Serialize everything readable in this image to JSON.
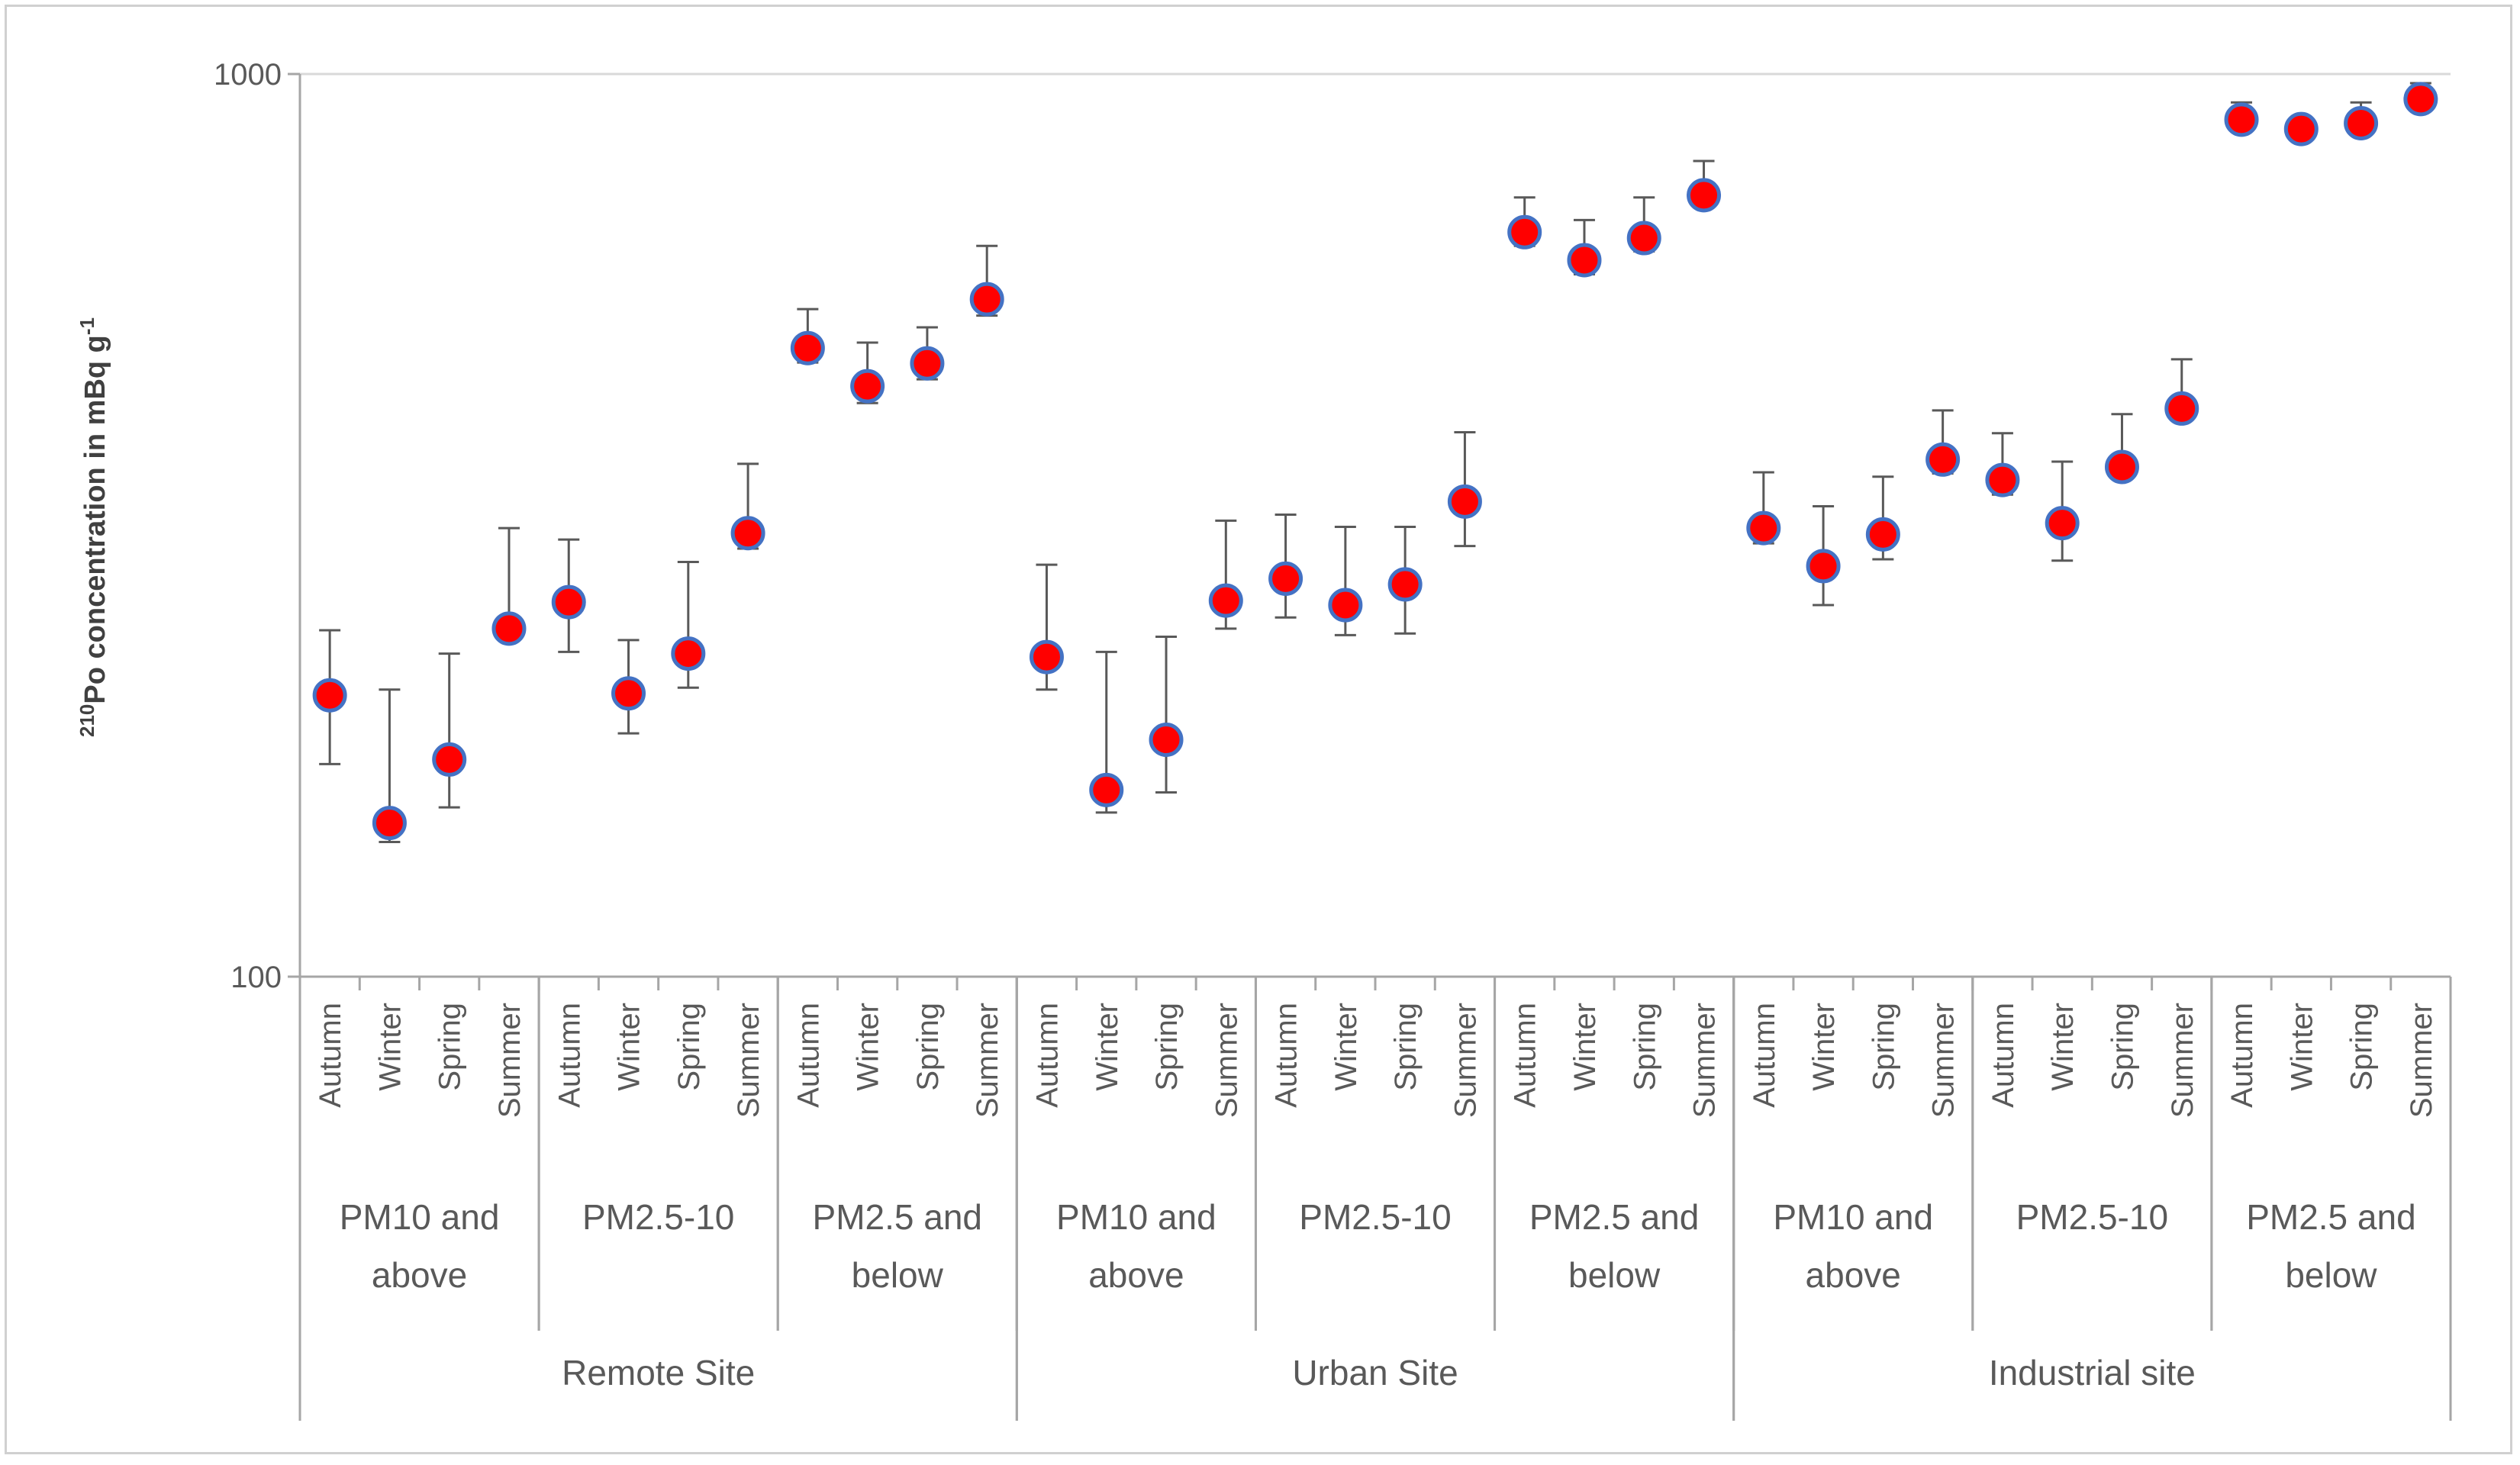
{
  "chart_data": {
    "type": "scatter",
    "title": "",
    "ylabel": {
      "superscript": "210",
      "text": "Po concentration in mBq g",
      "exponent": "-1"
    },
    "yscale": "log",
    "ylim": [
      100,
      1000
    ],
    "yticks": [
      {
        "value": 100,
        "label": "100"
      },
      {
        "value": 1000,
        "label": "1000"
      }
    ],
    "marker_fill": "#ff0000",
    "marker_edge": "#4472c4",
    "errorbar_color": "#595959",
    "sites": [
      {
        "label": "Remote Site",
        "groups": [
          {
            "label_lines": [
              "PM10 and",
              "above"
            ],
            "points": [
              {
                "season": "Autumn",
                "value": 205,
                "low": 172,
                "high": 242
              },
              {
                "season": "Winter",
                "value": 148,
                "low": 141,
                "high": 208
              },
              {
                "season": "Spring",
                "value": 174,
                "low": 154,
                "high": 228
              },
              {
                "season": "Summer",
                "value": 243,
                "low": 237,
                "high": 314
              }
            ]
          },
          {
            "label_lines": [
              "PM2.5-10"
            ],
            "points": [
              {
                "season": "Autumn",
                "value": 260,
                "low": 229,
                "high": 305
              },
              {
                "season": "Winter",
                "value": 206,
                "low": 186,
                "high": 236
              },
              {
                "season": "Spring",
                "value": 228,
                "low": 209,
                "high": 288
              },
              {
                "season": "Summer",
                "value": 310,
                "low": 298,
                "high": 370
              }
            ]
          },
          {
            "label_lines": [
              "PM2.5 and",
              "below"
            ],
            "points": [
              {
                "season": "Autumn",
                "value": 497,
                "low": 479,
                "high": 549
              },
              {
                "season": "Winter",
                "value": 451,
                "low": 432,
                "high": 504
              },
              {
                "season": "Spring",
                "value": 478,
                "low": 459,
                "high": 524
              },
              {
                "season": "Summer",
                "value": 563,
                "low": 540,
                "high": 645
              }
            ]
          }
        ]
      },
      {
        "label": "Urban Site",
        "groups": [
          {
            "label_lines": [
              "PM10 and",
              "above"
            ],
            "points": [
              {
                "season": "Autumn",
                "value": 226,
                "low": 208,
                "high": 286
              },
              {
                "season": "Winter",
                "value": 161,
                "low": 152,
                "high": 229
              },
              {
                "season": "Spring",
                "value": 183,
                "low": 160,
                "high": 238
              },
              {
                "season": "Summer",
                "value": 261,
                "low": 243,
                "high": 320
              }
            ]
          },
          {
            "label_lines": [
              "PM2.5-10"
            ],
            "points": [
              {
                "season": "Autumn",
                "value": 276,
                "low": 250,
                "high": 325
              },
              {
                "season": "Winter",
                "value": 258,
                "low": 239,
                "high": 315
              },
              {
                "season": "Spring",
                "value": 272,
                "low": 240,
                "high": 315
              },
              {
                "season": "Summer",
                "value": 336,
                "low": 300,
                "high": 401
              }
            ]
          },
          {
            "label_lines": [
              "PM2.5 and",
              "below"
            ],
            "points": [
              {
                "season": "Autumn",
                "value": 668,
                "low": 645,
                "high": 730
              },
              {
                "season": "Winter",
                "value": 622,
                "low": 600,
                "high": 689
              },
              {
                "season": "Spring",
                "value": 658,
                "low": 636,
                "high": 730
              },
              {
                "season": "Summer",
                "value": 734,
                "low": 720,
                "high": 801
              }
            ]
          }
        ]
      },
      {
        "label": "Industrial site",
        "groups": [
          {
            "label_lines": [
              "PM10 and",
              "above"
            ],
            "points": [
              {
                "season": "Autumn",
                "value": 314,
                "low": 302,
                "high": 362
              },
              {
                "season": "Winter",
                "value": 285,
                "low": 258,
                "high": 332
              },
              {
                "season": "Spring",
                "value": 309,
                "low": 290,
                "high": 358
              },
              {
                "season": "Summer",
                "value": 374,
                "low": 361,
                "high": 424
              }
            ]
          },
          {
            "label_lines": [
              "PM2.5-10"
            ],
            "points": [
              {
                "season": "Autumn",
                "value": 355,
                "low": 342,
                "high": 400
              },
              {
                "season": "Winter",
                "value": 318,
                "low": 289,
                "high": 372
              },
              {
                "season": "Spring",
                "value": 367,
                "low": 368,
                "high": 420
              },
              {
                "season": "Summer",
                "value": 426,
                "low": 420,
                "high": 483
              }
            ]
          },
          {
            "label_lines": [
              "PM2.5 and",
              "below"
            ],
            "points": [
              {
                "season": "Autumn",
                "value": 890,
                "low": 880,
                "high": 930
              },
              {
                "season": "Winter",
                "value": 869,
                "low": 857,
                "high": 894
              },
              {
                "season": "Spring",
                "value": 882,
                "low": 869,
                "high": 930
              },
              {
                "season": "Summer",
                "value": 938,
                "low": 913,
                "high": 977
              }
            ]
          }
        ]
      }
    ]
  }
}
